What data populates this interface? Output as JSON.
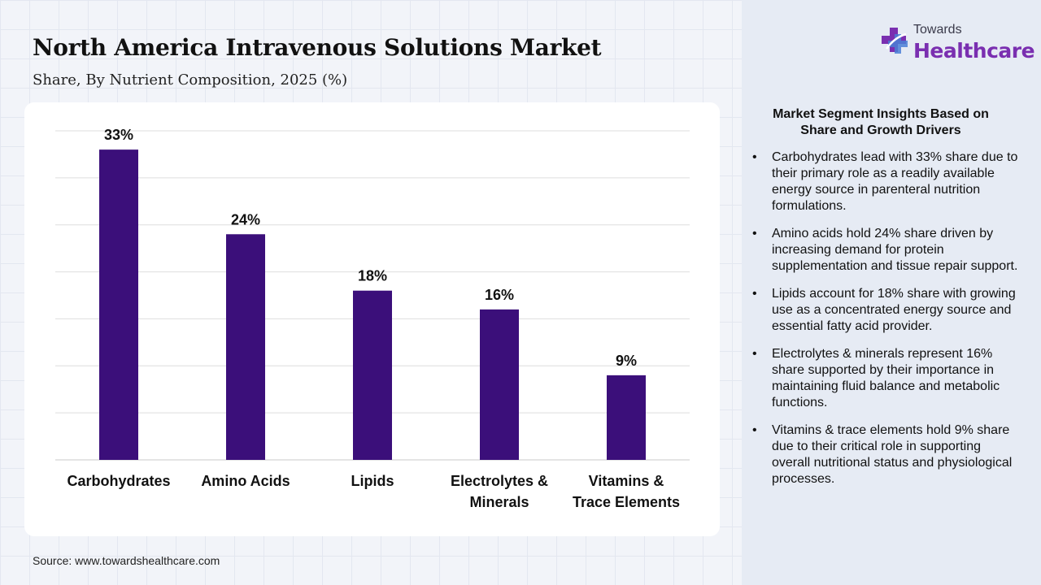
{
  "header": {
    "title": "North America Intravenous Solutions Market",
    "subtitle": "Share, By Nutrient Composition, 2025 (%)"
  },
  "logo": {
    "top_text": "Towards",
    "main_text": "Healthcare",
    "colors": {
      "accent": "#7a2fb0",
      "secondary": "#4a7fd6"
    }
  },
  "chart_data": {
    "type": "bar",
    "title": "North America Intravenous Solutions Market",
    "subtitle": "Share, By Nutrient Composition, 2025 (%)",
    "categories": [
      [
        "Carbohydrates"
      ],
      [
        "Amino Acids"
      ],
      [
        "Lipids"
      ],
      [
        "Electrolytes &",
        "Minerals"
      ],
      [
        "Vitamins &",
        "Trace Elements"
      ]
    ],
    "values": [
      33,
      24,
      18,
      16,
      9
    ],
    "value_labels": [
      "33%",
      "24%",
      "18%",
      "16%",
      "9%"
    ],
    "ylim": [
      0,
      35
    ],
    "grid": true,
    "bar_color": "#3b0f7a",
    "xlabel": "",
    "ylabel": ""
  },
  "insights": {
    "title": "Market Segment Insights Based on Share and Growth Drivers",
    "bullet": "•",
    "items": [
      "Carbohydrates lead with 33% share due to their primary role as a readily available energy source in parenteral nutrition formulations.",
      "Amino acids hold 24% share driven by increasing demand for protein supplementation and tissue repair support.",
      "Lipids account for 18% share with growing use as a concentrated energy source and essential fatty acid provider.",
      "Electrolytes & minerals represent 16% share supported by their importance in maintaining fluid balance and metabolic functions.",
      "Vitamins & trace elements hold 9% share due to their critical role in supporting overall nutritional status and physiological processes."
    ]
  },
  "footer": {
    "source": "Source: www.towardshealthcare.com"
  }
}
